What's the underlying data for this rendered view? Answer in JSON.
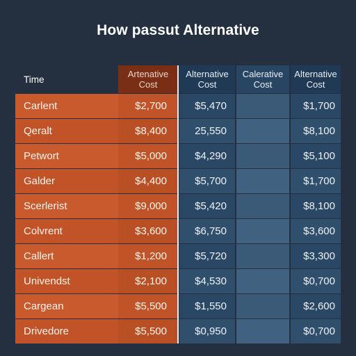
{
  "title": "How passut Alternative",
  "headers": {
    "name": "Time",
    "alt": "Artenative\nCost",
    "b1": "Alternative\nCost",
    "b2": "Calerative\nCost",
    "b3": "Alternative\nCost"
  },
  "colors": {
    "background": "#24303f",
    "orange": "#c85a2e",
    "orange_header": "#7a2e16",
    "blue": "#2a4865",
    "blue_header": "#203a56",
    "divider": "#e9eef4"
  },
  "rows": [
    {
      "name": "Carlent",
      "alt": "$2,700",
      "b1": "$5,470",
      "b2": "",
      "b3": "$1,700"
    },
    {
      "name": "Qeralt",
      "alt": "$8,400",
      "b1": "25,550",
      "b2": "",
      "b3": "$8,100"
    },
    {
      "name": "Petwort",
      "alt": "$5,000",
      "b1": "$4,290",
      "b2": "",
      "b3": "$5,100"
    },
    {
      "name": "Galder",
      "alt": "$4,400",
      "b1": "$5,700",
      "b2": "",
      "b3": "$1,700"
    },
    {
      "name": "Scerlerist",
      "alt": "$9,000",
      "b1": "$5,420",
      "b2": "",
      "b3": "$8,100"
    },
    {
      "name": "Colvrent",
      "alt": "$3,600",
      "b1": "$6,750",
      "b2": "",
      "b3": "$3,600"
    },
    {
      "name": "Callert",
      "alt": "$1,200",
      "b1": "$5,720",
      "b2": "",
      "b3": "$3,300"
    },
    {
      "name": "Univendst",
      "alt": "$2,100",
      "b1": "$4,530",
      "b2": "",
      "b3": "$0,700"
    },
    {
      "name": "Cargean",
      "alt": "$5,500",
      "b1": "$1,550",
      "b2": "",
      "b3": "$2,600"
    },
    {
      "name": "Drivedore",
      "alt": "$5,500",
      "b1": "$0,950",
      "b2": "",
      "b3": "$0,700"
    }
  ]
}
